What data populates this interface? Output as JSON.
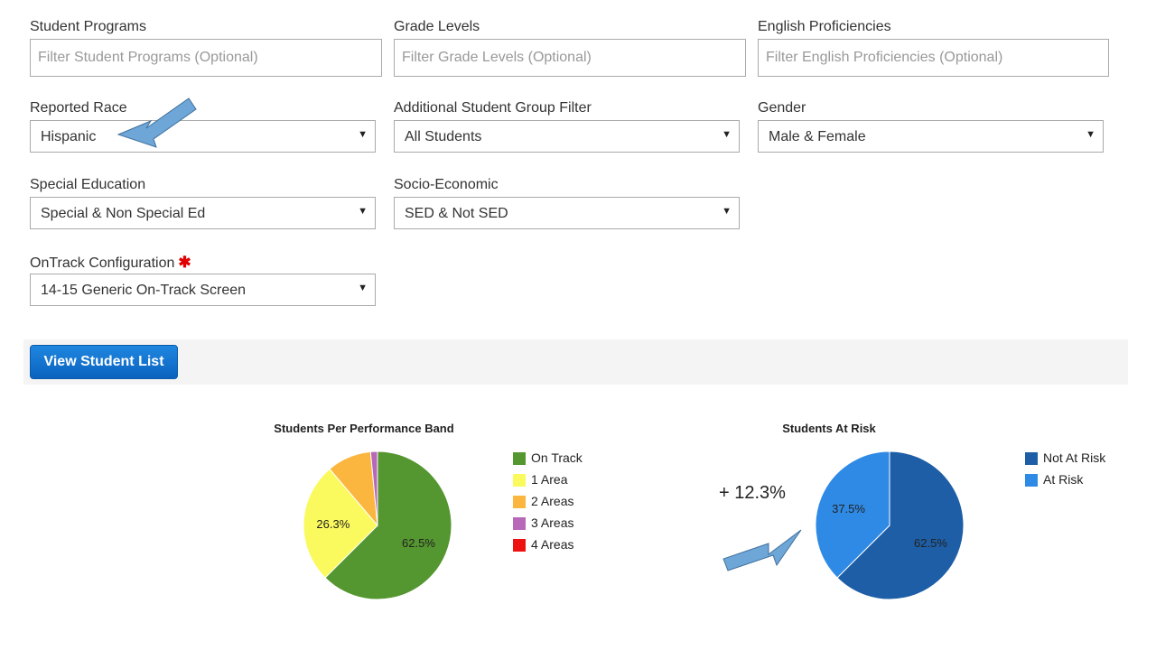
{
  "filters": {
    "student_programs": {
      "label": "Student Programs",
      "placeholder": "Filter Student Programs (Optional)"
    },
    "grade_levels": {
      "label": "Grade Levels",
      "placeholder": "Filter Grade Levels (Optional)"
    },
    "english_proficiencies": {
      "label": "English Proficiencies",
      "placeholder": "Filter English Proficiencies (Optional)"
    },
    "reported_race": {
      "label": "Reported Race",
      "value": "Hispanic"
    },
    "additional_group": {
      "label": "Additional Student Group Filter",
      "value": "All Students"
    },
    "gender": {
      "label": "Gender",
      "value": "Male & Female"
    },
    "special_education": {
      "label": "Special Education",
      "value": "Special & Non Special Ed"
    },
    "socio_economic": {
      "label": "Socio-Economic",
      "value": "SED & Not SED"
    },
    "ontrack_config": {
      "label": "OnTrack Configuration",
      "required_mark": "✱",
      "value": "14-15 Generic On-Track Screen"
    },
    "caret": "▼"
  },
  "actions": {
    "view_student_list": "View Student List"
  },
  "annotation": {
    "text": "+ 12.3%",
    "arrow_color": "#6ea6d8"
  },
  "chart_data": [
    {
      "type": "pie",
      "title": "Students Per Performance Band",
      "legend_position": "right",
      "slices": [
        {
          "label": "On Track",
          "value": 62.5,
          "color": "#54962f",
          "data_label": "62.5%"
        },
        {
          "label": "1 Area",
          "value": 26.3,
          "color": "#fafa5e",
          "data_label": "26.3%"
        },
        {
          "label": "2 Areas",
          "value": 9.7,
          "color": "#fbb640",
          "data_label": ""
        },
        {
          "label": "3 Areas",
          "value": 1.5,
          "color": "#b768b8",
          "data_label": ""
        },
        {
          "label": "4 Areas",
          "value": 0,
          "color": "#ee1111",
          "data_label": ""
        }
      ]
    },
    {
      "type": "pie",
      "title": "Students At Risk",
      "legend_position": "top-right",
      "slices": [
        {
          "label": "Not At Risk",
          "value": 62.5,
          "color": "#1d5ea6",
          "data_label": "62.5%"
        },
        {
          "label": "At Risk",
          "value": 37.5,
          "color": "#2f8ae5",
          "data_label": "37.5%"
        }
      ]
    }
  ]
}
